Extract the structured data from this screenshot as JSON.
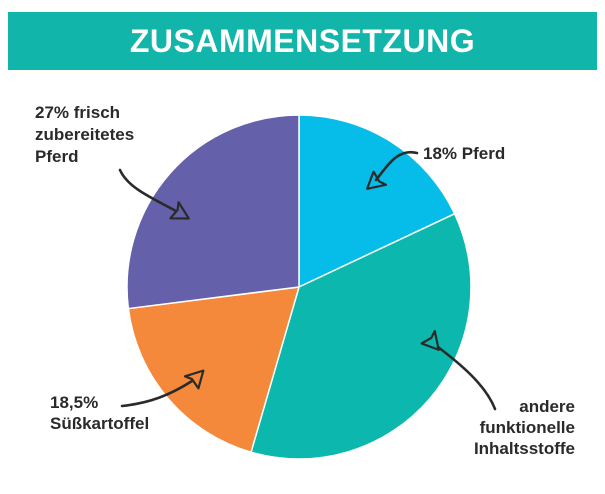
{
  "header": {
    "title": "ZUSAMMENSETZUNG"
  },
  "colors": {
    "banner": "#12b5aa",
    "text": "#2a2a2a",
    "arrow": "#2a2a2a"
  },
  "chart_data": {
    "type": "pie",
    "title": "ZUSAMMENSETZUNG",
    "slices": [
      {
        "name": "Pferd",
        "value": 18,
        "color": "#06bde9",
        "label_lines": [
          "18% Pferd"
        ]
      },
      {
        "name": "andere funktionelle Inhaltsstoffe",
        "value": 36.5,
        "color": "#0cb8ad",
        "label_lines": [
          "andere",
          "funktionelle",
          "Inhaltsstoffe"
        ]
      },
      {
        "name": "Süßkartoffel",
        "value": 18.5,
        "color": "#f4883b",
        "label_lines": [
          "18,5%",
          "Süßkartoffel"
        ]
      },
      {
        "name": "frisch zubereitetes Pferd",
        "value": 27,
        "color": "#6460a9",
        "label_lines": [
          "27% frisch",
          "zubereitetes",
          "Pferd"
        ]
      }
    ],
    "start_angle": "12 o'clock",
    "direction": "clockwise",
    "legend": "none"
  }
}
